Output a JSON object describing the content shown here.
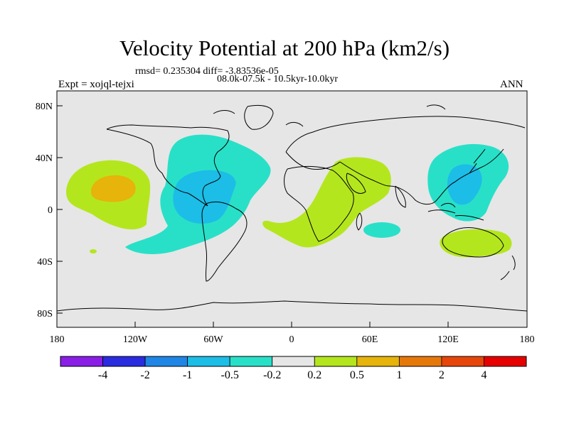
{
  "title": "Velocity Potential at 200 hPa (km2/s)",
  "stats": "rmsd= 0.235304 diff= -3.83536e-05",
  "period": "08.0k-07.5k - 10.5kyr-10.0kyr",
  "experiment": "Expt = xojql-tejxi",
  "season": "ANN",
  "lon_ticks": [
    "180",
    "120W",
    "60W",
    "0",
    "60E",
    "120E",
    "180"
  ],
  "lat_ticks": [
    "80N",
    "40N",
    "0",
    "40S",
    "80S"
  ],
  "colorbar": {
    "labels": [
      "-4",
      "-2",
      "-1",
      "-0.5",
      "-0.2",
      "0.2",
      "0.5",
      "1",
      "2",
      "4"
    ],
    "colors": [
      "#8a1ee6",
      "#2b2be0",
      "#1f86e6",
      "#1cbde6",
      "#28e0c8",
      "#e6e6e6",
      "#b4e61e",
      "#e6b40a",
      "#e6780a",
      "#e6460a",
      "#e60000"
    ]
  },
  "colors": {
    "map_background": "#e6e6e6",
    "coast": "#000000",
    "negative_light": "#28e0c8",
    "negative_mid": "#1cbde6",
    "positive_light": "#b4e61e",
    "positive_mid": "#e6b40a"
  }
}
